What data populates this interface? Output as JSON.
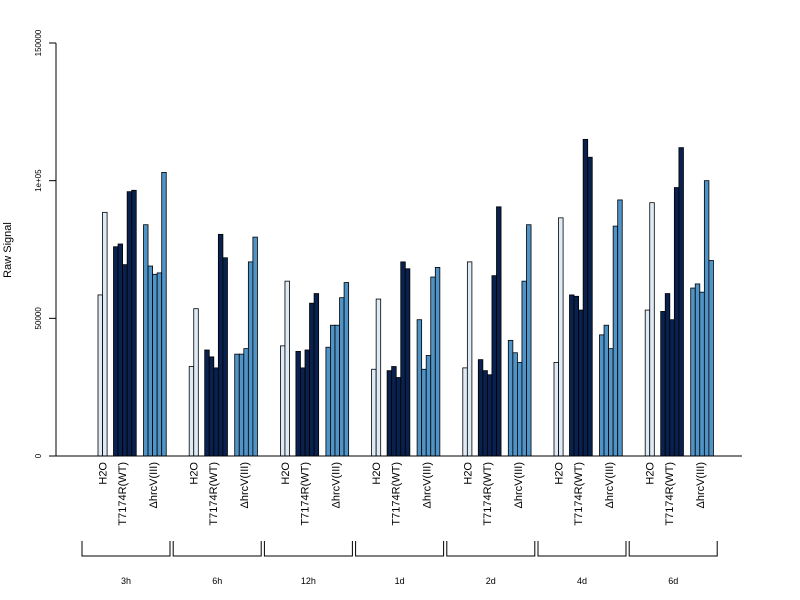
{
  "chart_data": {
    "type": "bar",
    "title": "",
    "xlabel": "",
    "ylabel": "Raw Signal",
    "ylim": [
      0,
      150000
    ],
    "y_ticks": [
      {
        "value": 0,
        "label": "0"
      },
      {
        "value": 50000,
        "label": "50000"
      },
      {
        "value": 100000,
        "label": "1e+05"
      },
      {
        "value": 150000,
        "label": "150000"
      }
    ],
    "grid": false,
    "legend": "none",
    "colors": {
      "H2O": "#deebf7",
      "T7174R(WT)": "#08214f",
      "ΔhrcV(III)": "#4f93c7"
    },
    "treatments": [
      "H2O",
      "T7174R(WT)",
      "ΔhrcV(III)"
    ],
    "groups": [
      {
        "label": "3h",
        "values": {
          "H2O": [
            58500,
            88500
          ],
          "T7174R(WT)": [
            76000,
            77000,
            69500,
            96000,
            96500
          ],
          "ΔhrcV(III)": [
            84000,
            69000,
            66000,
            66500,
            103000
          ]
        }
      },
      {
        "label": "6h",
        "values": {
          "H2O": [
            32500,
            53500
          ],
          "T7174R(WT)": [
            38500,
            36000,
            32000,
            80500,
            72000
          ],
          "ΔhrcV(III)": [
            37000,
            37000,
            39000,
            70500,
            79500
          ]
        }
      },
      {
        "label": "12h",
        "values": {
          "H2O": [
            40000,
            63500
          ],
          "T7174R(WT)": [
            38000,
            32000,
            38500,
            55500,
            59000
          ],
          "ΔhrcV(III)": [
            39500,
            47500,
            47500,
            57500,
            63000
          ]
        }
      },
      {
        "label": "1d",
        "values": {
          "H2O": [
            31500,
            57000
          ],
          "T7174R(WT)": [
            31000,
            32500,
            28500,
            70500,
            68000
          ],
          "ΔhrcV(III)": [
            49500,
            31500,
            36500,
            65000,
            68500
          ]
        }
      },
      {
        "label": "2d",
        "values": {
          "H2O": [
            32000,
            70500
          ],
          "T7174R(WT)": [
            35000,
            31000,
            29500,
            65500,
            90500
          ],
          "ΔhrcV(III)": [
            42000,
            37500,
            34000,
            63500,
            84000
          ]
        }
      },
      {
        "label": "4d",
        "values": {
          "H2O": [
            34000,
            86500
          ],
          "T7174R(WT)": [
            58500,
            58000,
            53000,
            115000,
            108500
          ],
          "ΔhrcV(III)": [
            44000,
            47500,
            39000,
            83500,
            93000
          ]
        }
      },
      {
        "label": "6d",
        "values": {
          "H2O": [
            53000,
            92000
          ],
          "T7174R(WT)": [
            52500,
            59000,
            49500,
            97500,
            112000
          ],
          "ΔhrcV(III)": [
            61000,
            62500,
            59500,
            100000,
            71000
          ]
        }
      }
    ]
  }
}
